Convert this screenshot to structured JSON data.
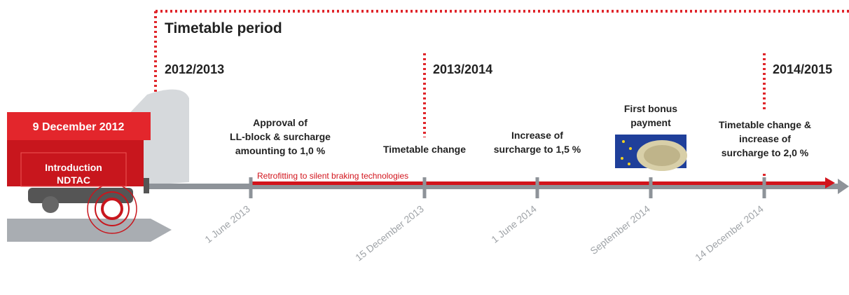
{
  "header": {
    "title": "Timetable period"
  },
  "periods": [
    "2012/2013",
    "2013/2014",
    "2014/2015"
  ],
  "start": {
    "date": "9 December 2012",
    "label": [
      "Introduction",
      "NDTAC"
    ]
  },
  "retrofit": "Retrofitting  to silent braking technologies",
  "events": [
    {
      "label": [
        "Approval of",
        "LL-block & surcharge",
        "amounting to 1,0 %"
      ],
      "date": "1 June 2013"
    },
    {
      "label": [
        "Timetable change"
      ],
      "date": "15 December 2013"
    },
    {
      "label": [
        "Increase of",
        "surcharge to 1,5 %"
      ],
      "date": "1 June 2014"
    },
    {
      "label": [
        "First bonus",
        "payment"
      ],
      "date": "September 2014"
    },
    {
      "label": [
        "Timetable change &",
        "increase of",
        "surcharge to 2,0 %"
      ],
      "date": "14 December 2014"
    }
  ]
}
